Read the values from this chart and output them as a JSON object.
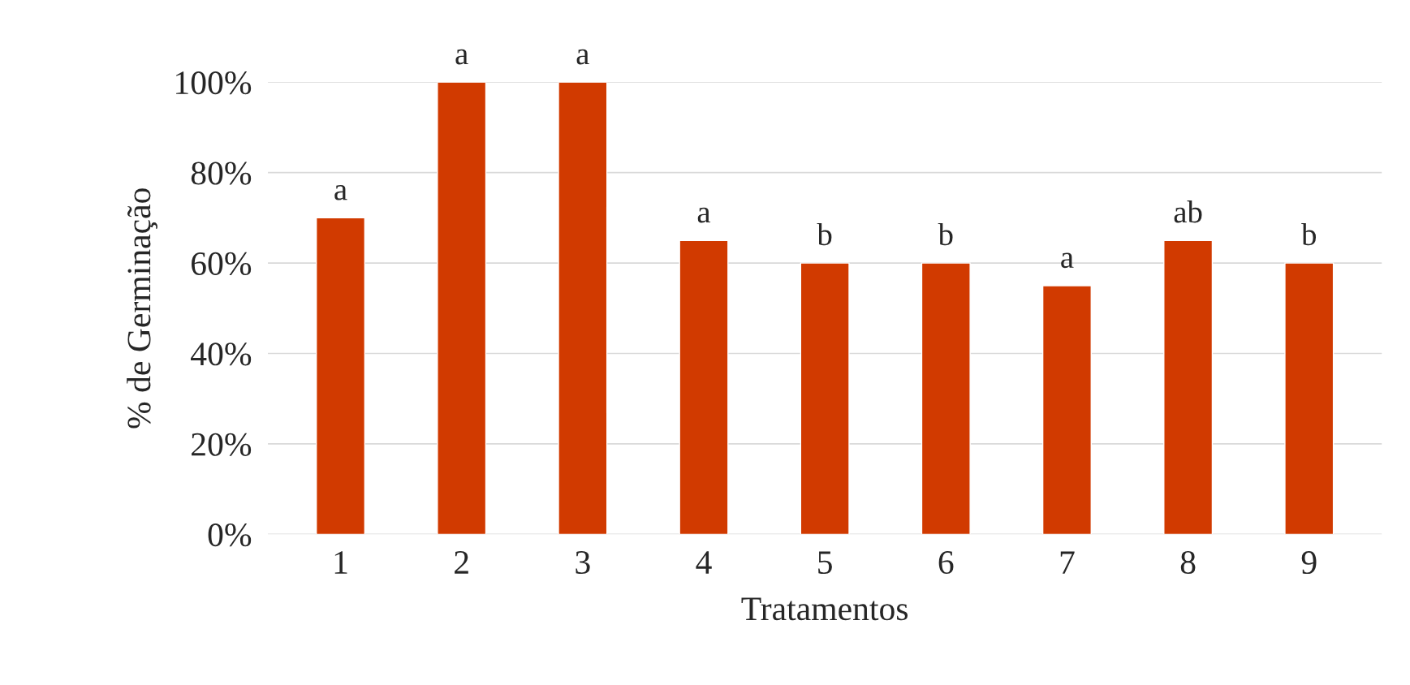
{
  "chart_data": {
    "type": "bar",
    "xlabel": "Tratamentos",
    "ylabel": "% de Germinação",
    "categories": [
      "1",
      "2",
      "3",
      "4",
      "5",
      "6",
      "7",
      "8",
      "9"
    ],
    "values": [
      70,
      100,
      100,
      65,
      60,
      60,
      55,
      65,
      60
    ],
    "color": "#d13a00",
    "ylim": [
      0,
      100
    ],
    "yticks": [
      {
        "value": 0,
        "label": "0%"
      },
      {
        "value": 20,
        "label": "20%"
      },
      {
        "value": 40,
        "label": "40%"
      },
      {
        "value": 60,
        "label": "60%"
      },
      {
        "value": 80,
        "label": "80%"
      },
      {
        "value": 100,
        "label": "100%"
      }
    ],
    "grid": "y",
    "annotations": [
      {
        "text": "a",
        "x": "1",
        "y": 70
      },
      {
        "text": "a",
        "x": "2",
        "y": 100
      },
      {
        "text": "a",
        "x": "3",
        "y": 100
      },
      {
        "text": "a",
        "x": "4",
        "y": 65
      },
      {
        "text": "b",
        "x": "5",
        "y": 60
      },
      {
        "text": "b",
        "x": "6",
        "y": 60
      },
      {
        "text": "a",
        "x": "7",
        "y": 55
      },
      {
        "text": "ab",
        "x": "8",
        "y": 65
      },
      {
        "text": "b",
        "x": "9",
        "y": 60
      }
    ]
  }
}
